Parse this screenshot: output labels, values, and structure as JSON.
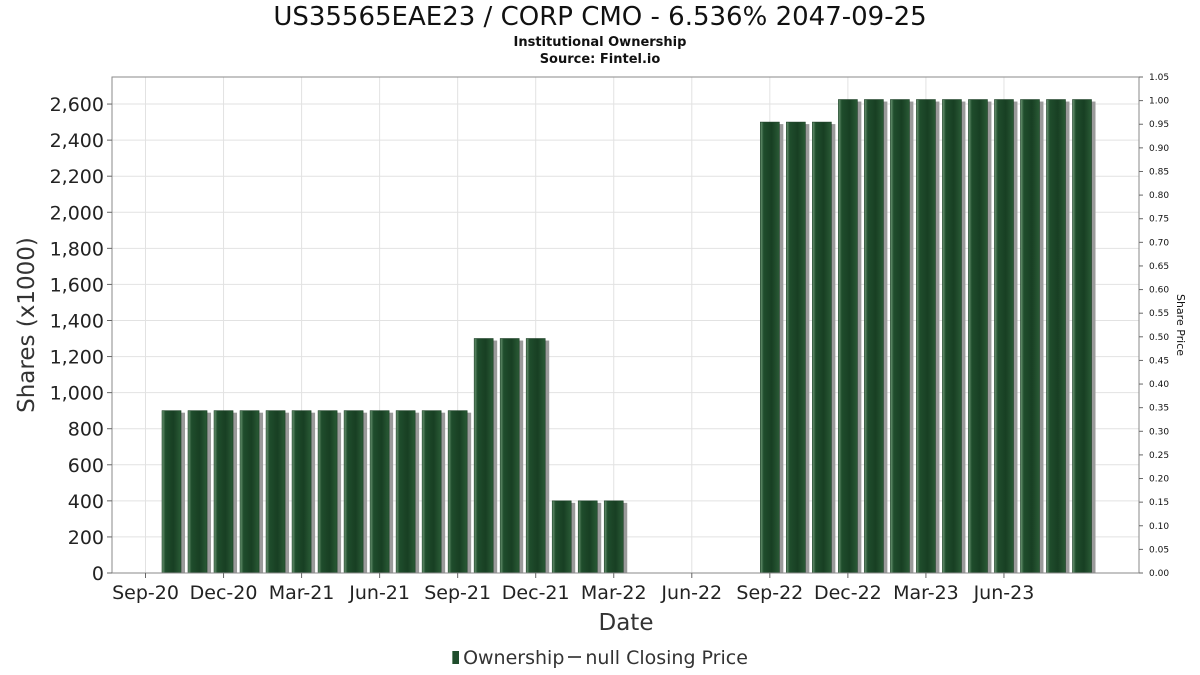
{
  "chart_data": {
    "type": "bar",
    "title": "US35565EAE23 / CORP CMO - 6.536% 2047-09-25",
    "subtitle": "Institutional Ownership",
    "source": "Source: Fintel.io",
    "xlabel": "Date",
    "ylabel": "Shares (x1000)",
    "y2label": "Share Price",
    "ylim": [
      0,
      2750
    ],
    "y2lim": [
      0,
      1.05
    ],
    "yticks": [
      0,
      200,
      400,
      600,
      800,
      1000,
      1200,
      1400,
      1600,
      1800,
      2000,
      2200,
      2400,
      2600
    ],
    "ytick_labels": [
      "0",
      "200",
      "400",
      "600",
      "800",
      "1,000",
      "1,200",
      "1,400",
      "1,600",
      "1,800",
      "2,000",
      "2,200",
      "2,400",
      "2,600"
    ],
    "y2ticks": [
      "0.00",
      "0.05",
      "0.10",
      "0.15",
      "0.20",
      "0.25",
      "0.30",
      "0.35",
      "0.40",
      "0.45",
      "0.50",
      "0.55",
      "0.60",
      "0.65",
      "0.70",
      "0.75",
      "0.80",
      "0.85",
      "0.90",
      "0.95",
      "1.00",
      "1.05"
    ],
    "xticks": [
      "Sep-20",
      "Dec-20",
      "Mar-21",
      "Jun-21",
      "Sep-21",
      "Dec-21",
      "Mar-22",
      "Jun-22",
      "Sep-22",
      "Dec-22",
      "Mar-23",
      "Jun-23"
    ],
    "grid": true,
    "legend_position": "bottom",
    "series": [
      {
        "name": "Ownership",
        "color": "#1f4d2c",
        "values": [
          null,
          900,
          900,
          900,
          900,
          900,
          900,
          900,
          900,
          900,
          900,
          900,
          900,
          1300,
          1300,
          1300,
          400,
          400,
          400,
          null,
          null,
          null,
          null,
          null,
          2500,
          2500,
          2500,
          2625,
          2625,
          2625,
          2625,
          2625,
          2625,
          2625,
          2625,
          2625,
          2625
        ]
      },
      {
        "name": "null Closing Price",
        "color": "#555555",
        "values": []
      }
    ]
  }
}
